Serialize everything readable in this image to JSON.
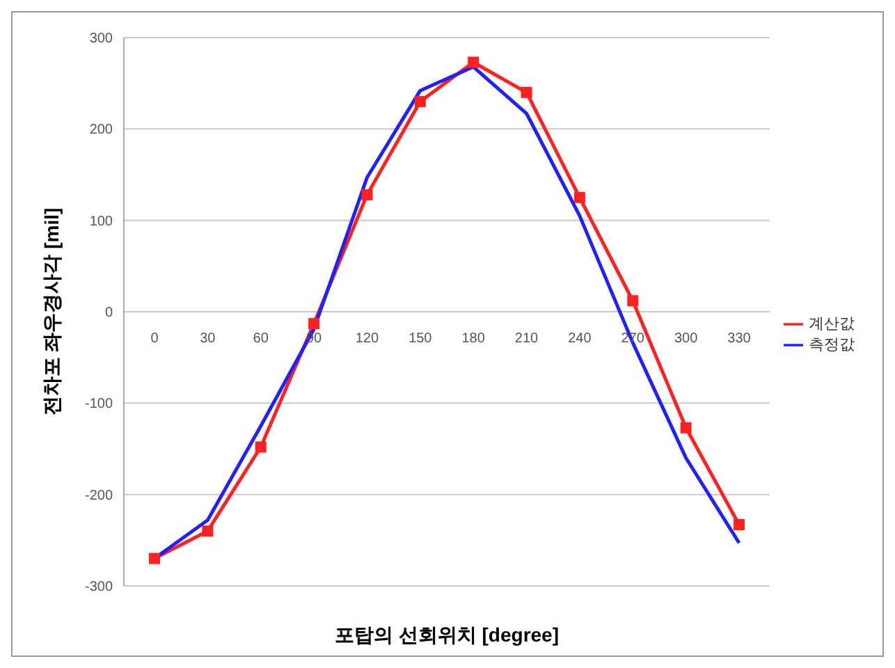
{
  "chart_data": {
    "type": "line",
    "xlabel": "포탑의 선회위치 [degree]",
    "ylabel": "전차포 좌우경사각 [mil]",
    "categories": [
      "0",
      "30",
      "60",
      "90",
      "120",
      "150",
      "180",
      "210",
      "240",
      "270",
      "300",
      "330"
    ],
    "series": [
      {
        "name": "계산값",
        "color": "#ff2020",
        "marker": "square",
        "values": [
          -270,
          -240,
          -148,
          -13,
          128,
          230,
          273,
          240,
          125,
          12,
          -127,
          -233
        ]
      },
      {
        "name": "측정값",
        "color": "#2020ff",
        "marker": "none",
        "values": [
          -270,
          -228,
          -125,
          -19,
          147,
          242,
          268,
          217,
          105,
          -34,
          -160,
          -253
        ]
      }
    ],
    "ylim": [
      -300,
      300
    ],
    "yticks": [
      -300,
      -200,
      -100,
      0,
      100,
      200,
      300
    ],
    "grid": "y",
    "legend": "right"
  }
}
